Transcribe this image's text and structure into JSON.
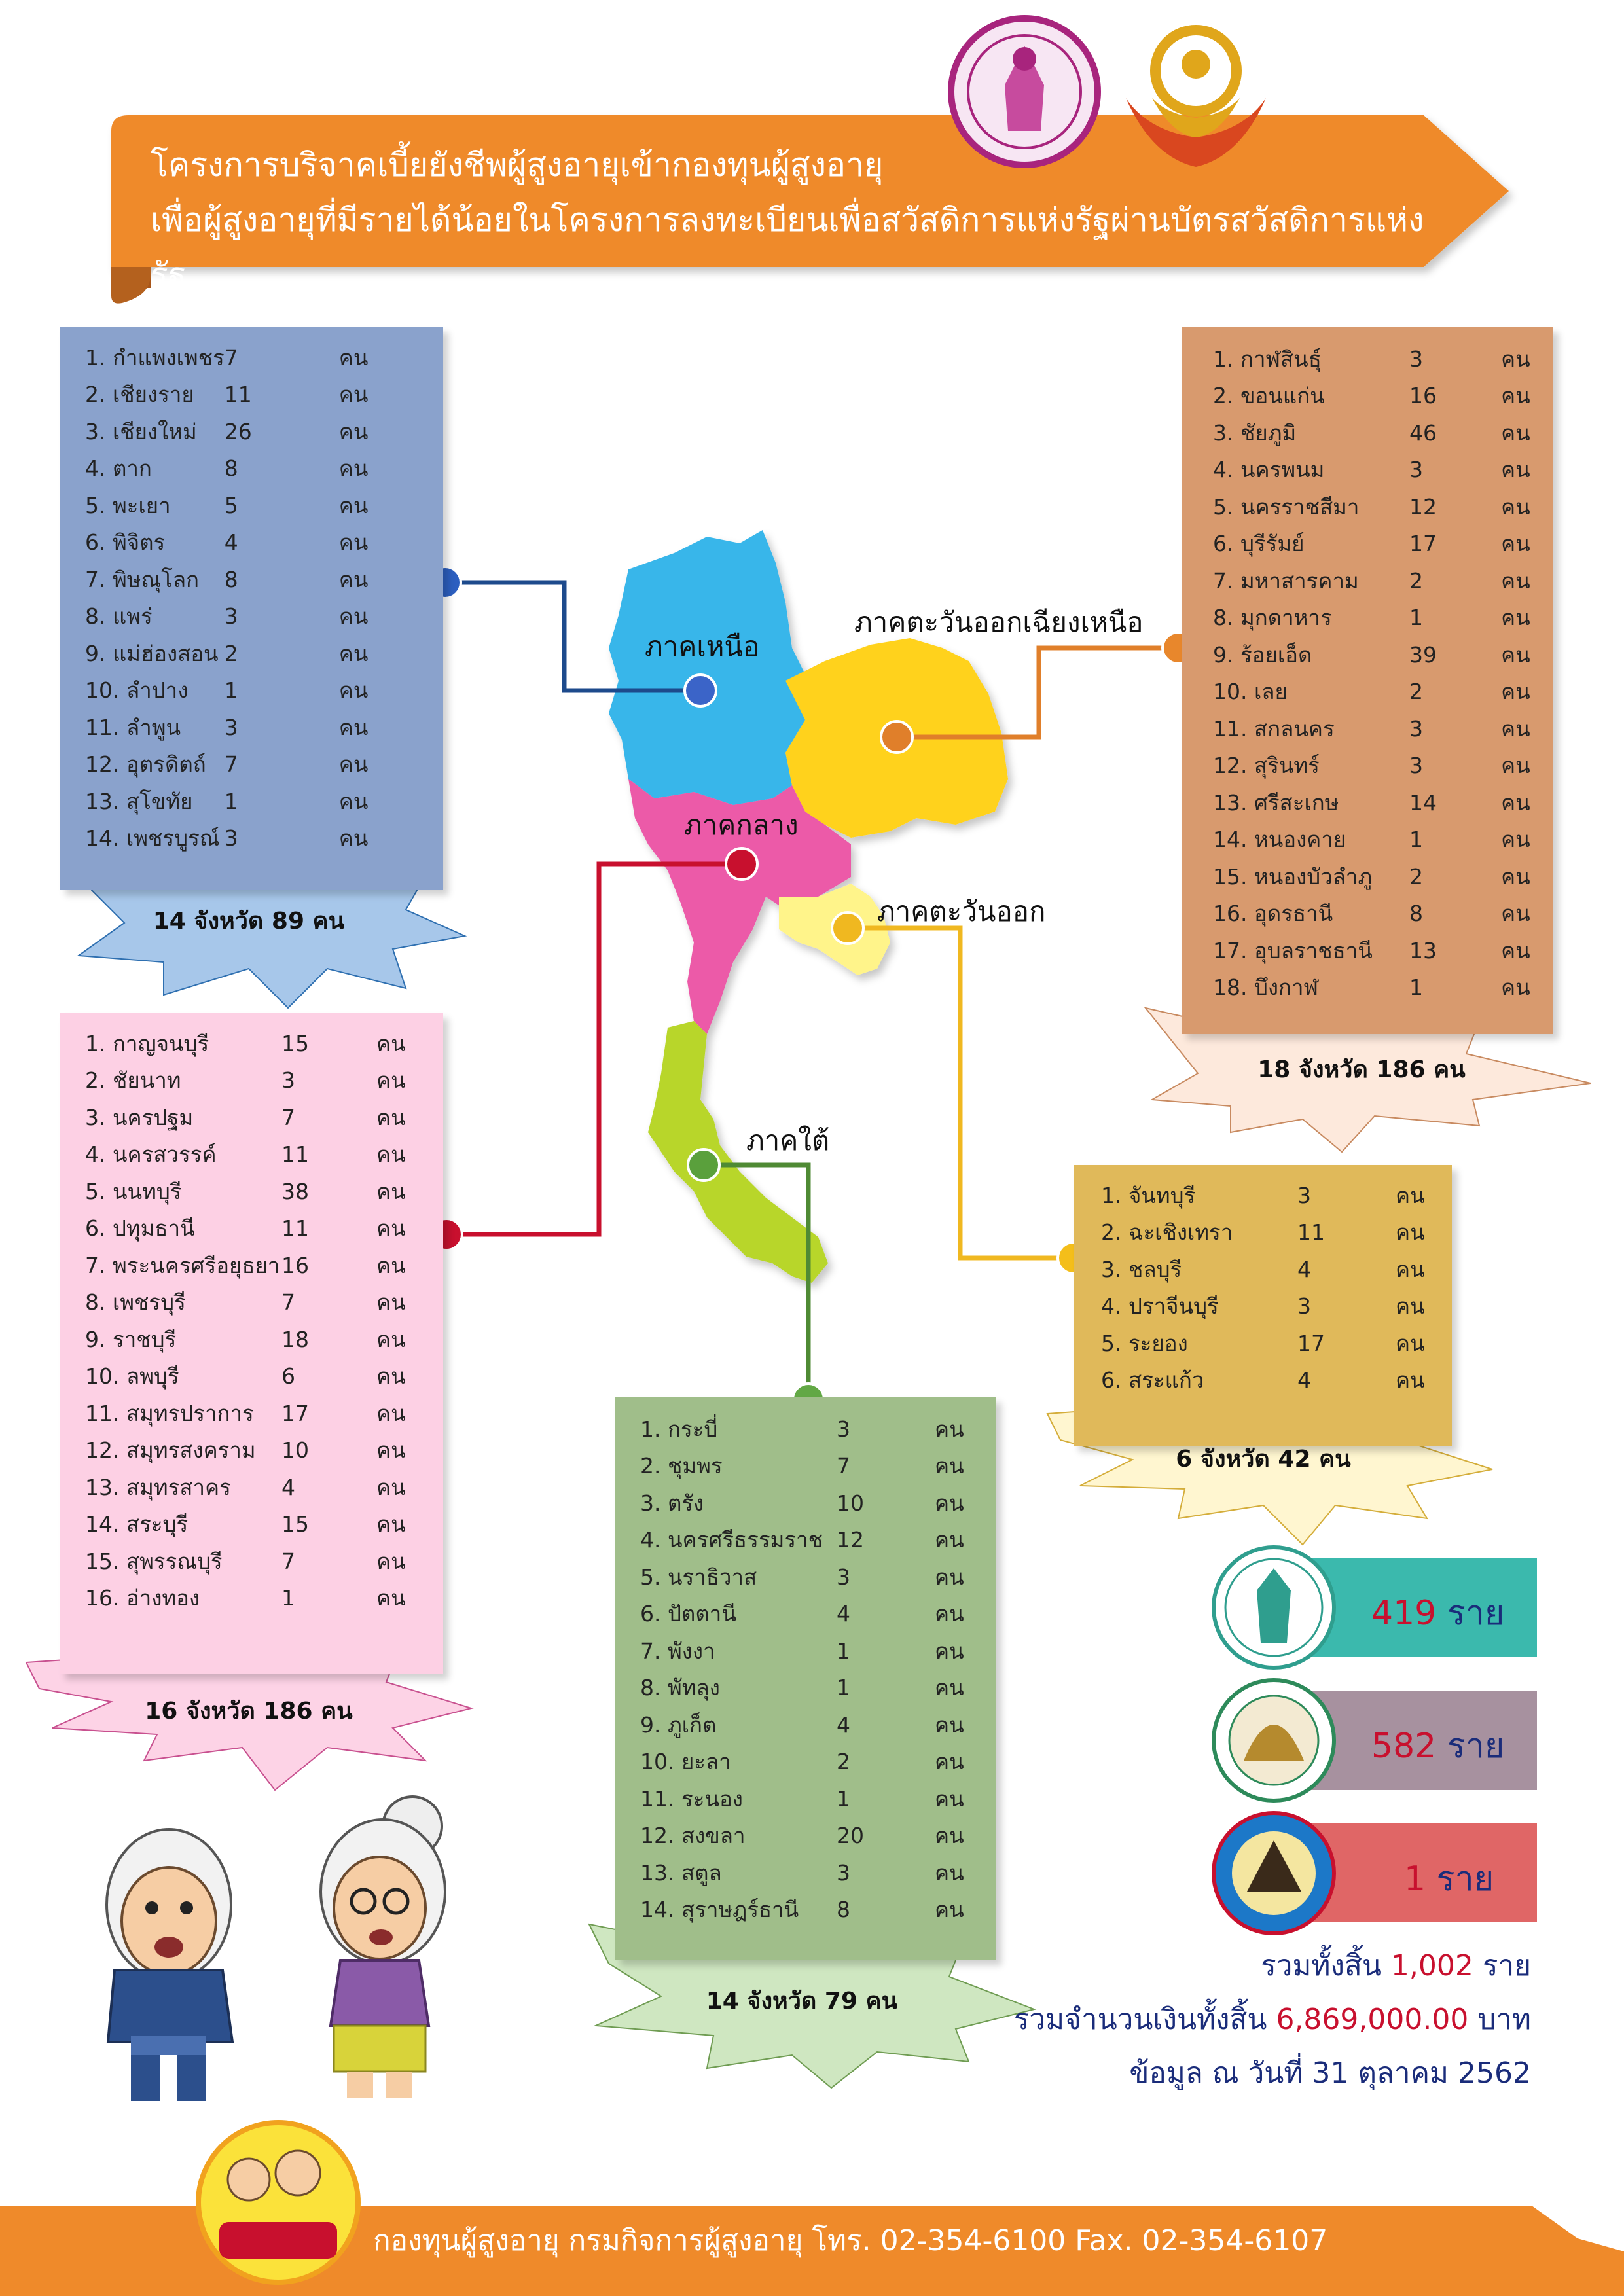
{
  "header": {
    "title_line1": "โครงการบริจาคเบี้ยยังชีพผู้สูงอายุเข้ากองทุนผู้สูงอายุ",
    "title_line2": "เพื่อผู้สูงอายุที่มีรายได้น้อยในโครงการลงทะเบียนเพื่อสวัสดิการแห่งรัฐผ่านบัตรสวัสดิการแห่งรัฐ"
  },
  "unit": "คน",
  "regions": {
    "north": {
      "name": "ภาคเหนือ",
      "summary": "14 จังหวัด 89 คน",
      "items": [
        {
          "label": "1. กำแพงเพชร",
          "count": "7"
        },
        {
          "label": "2. เชียงราย",
          "count": "11"
        },
        {
          "label": "3. เชียงใหม่",
          "count": "26"
        },
        {
          "label": "4. ตาก",
          "count": "8"
        },
        {
          "label": "5. พะเยา",
          "count": "5"
        },
        {
          "label": "6. พิจิตร",
          "count": "4"
        },
        {
          "label": "7. พิษณุโลก",
          "count": "8"
        },
        {
          "label": "8. แพร่",
          "count": "3"
        },
        {
          "label": "9. แม่ฮ่องสอน",
          "count": "2"
        },
        {
          "label": "10. ลำปาง",
          "count": "1"
        },
        {
          "label": "11. ลำพูน",
          "count": "3"
        },
        {
          "label": "12. อุตรดิตถ์",
          "count": "7"
        },
        {
          "label": "13. สุโขทัย",
          "count": "1"
        },
        {
          "label": "14. เพชรบูรณ์",
          "count": "3"
        }
      ]
    },
    "northeast": {
      "name": "ภาคตะวันออกเฉียงเหนือ",
      "summary": "18 จังหวัด 186 คน",
      "items": [
        {
          "label": "1. กาฬสินธุ์",
          "count": "3"
        },
        {
          "label": "2. ขอนแก่น",
          "count": "16"
        },
        {
          "label": "3. ชัยภูมิ",
          "count": "46"
        },
        {
          "label": "4. นครพนม",
          "count": "3"
        },
        {
          "label": "5. นครราชสีมา",
          "count": "12"
        },
        {
          "label": "6. บุรีรัมย์",
          "count": "17"
        },
        {
          "label": "7. มหาสารคาม",
          "count": "2"
        },
        {
          "label": "8. มุกดาหาร",
          "count": "1"
        },
        {
          "label": "9. ร้อยเอ็ด",
          "count": "39"
        },
        {
          "label": "10. เลย",
          "count": "2"
        },
        {
          "label": "11. สกลนคร",
          "count": "3"
        },
        {
          "label": "12. สุรินทร์",
          "count": "3"
        },
        {
          "label": "13. ศรีสะเกษ",
          "count": "14"
        },
        {
          "label": "14. หนองคาย",
          "count": "1"
        },
        {
          "label": "15. หนองบัวลำภู",
          "count": "2"
        },
        {
          "label": "16. อุดรธานี",
          "count": "8"
        },
        {
          "label": "17. อุบลราชธานี",
          "count": "13"
        },
        {
          "label": "18. บึงกาฬ",
          "count": "1"
        }
      ]
    },
    "central": {
      "name": "ภาคกลาง",
      "summary": "16 จังหวัด 186 คน",
      "items": [
        {
          "label": "1. กาญจนบุรี",
          "count": "15"
        },
        {
          "label": "2. ชัยนาท",
          "count": "3"
        },
        {
          "label": "3. นครปฐม",
          "count": "7"
        },
        {
          "label": "4. นครสวรรค์",
          "count": "11"
        },
        {
          "label": "5. นนทบุรี",
          "count": "38"
        },
        {
          "label": "6. ปทุมธานี",
          "count": "11"
        },
        {
          "label": "7. พระนครศรีอยุธยา",
          "count": "16"
        },
        {
          "label": "8. เพชรบุรี",
          "count": "7"
        },
        {
          "label": "9. ราชบุรี",
          "count": "18"
        },
        {
          "label": "10. ลพบุรี",
          "count": "6"
        },
        {
          "label": "11. สมุทรปราการ",
          "count": "17"
        },
        {
          "label": "12. สมุทรสงคราม",
          "count": "10"
        },
        {
          "label": "13. สมุทรสาคร",
          "count": "4"
        },
        {
          "label": "14. สระบุรี",
          "count": "15"
        },
        {
          "label": "15. สุพรรณบุรี",
          "count": "7"
        },
        {
          "label": "16. อ่างทอง",
          "count": "1"
        }
      ]
    },
    "east": {
      "name": "ภาคตะวันออก",
      "summary": "6 จังหวัด 42 คน",
      "items": [
        {
          "label": "1. จันทบุรี",
          "count": "3"
        },
        {
          "label": "2. ฉะเชิงเทรา",
          "count": "11"
        },
        {
          "label": "3. ชลบุรี",
          "count": "4"
        },
        {
          "label": "4. ปราจีนบุรี",
          "count": "3"
        },
        {
          "label": "5. ระยอง",
          "count": "17"
        },
        {
          "label": "6. สระแก้ว",
          "count": "4"
        }
      ]
    },
    "south": {
      "name": "ภาคใต้",
      "summary": "14 จังหวัด 79 คน",
      "items": [
        {
          "label": "1. กระบี่",
          "count": "3"
        },
        {
          "label": "2. ชุมพร",
          "count": "7"
        },
        {
          "label": "3. ตรัง",
          "count": "10"
        },
        {
          "label": "4. นครศรีธรรมราช",
          "count": "12"
        },
        {
          "label": "5. นราธิวาส",
          "count": "3"
        },
        {
          "label": "6. ปัตตานี",
          "count": "4"
        },
        {
          "label": "7. พังงา",
          "count": "1"
        },
        {
          "label": "8. พัทลุง",
          "count": "1"
        },
        {
          "label": "9. ภูเก็ต",
          "count": "4"
        },
        {
          "label": "10. ยะลา",
          "count": "2"
        },
        {
          "label": "11. ระนอง",
          "count": "1"
        },
        {
          "label": "12. สงขลา",
          "count": "20"
        },
        {
          "label": "13. สตูล",
          "count": "3"
        },
        {
          "label": "14. สุราษฎร์ธานี",
          "count": "8"
        }
      ]
    }
  },
  "organizations": [
    {
      "count": "419",
      "unit": "ราย",
      "bar_color": "#3bb9ad"
    },
    {
      "count": "582",
      "unit": "ราย",
      "bar_color": "#a7919f"
    },
    {
      "count": "1",
      "unit": "ราย",
      "bar_color": "#e06666"
    }
  ],
  "totals": {
    "people_prefix": "รวมทั้งสิ้น",
    "people_value": "1,002",
    "people_unit": "ราย",
    "money_prefix": "รวมจำนวนเงินทั้งสิ้น",
    "money_value": "6,869,000.00",
    "money_unit": "บาท",
    "as_of": "ข้อมูล ณ วันที่ 31 ตุลาคม 2562"
  },
  "footer": {
    "text": "กองทุนผู้สูงอายุ กรมกิจการผู้สูงอายุ โทร. 02-354-6100 Fax. 02-354-6107"
  },
  "colors": {
    "orange": "#ef8a2a",
    "north_panel": "#8aa2cc",
    "northeast_panel": "#d89a6e",
    "central_panel": "#fdd0e4",
    "east_panel": "#e0b95a",
    "south_panel": "#a0be8a"
  }
}
